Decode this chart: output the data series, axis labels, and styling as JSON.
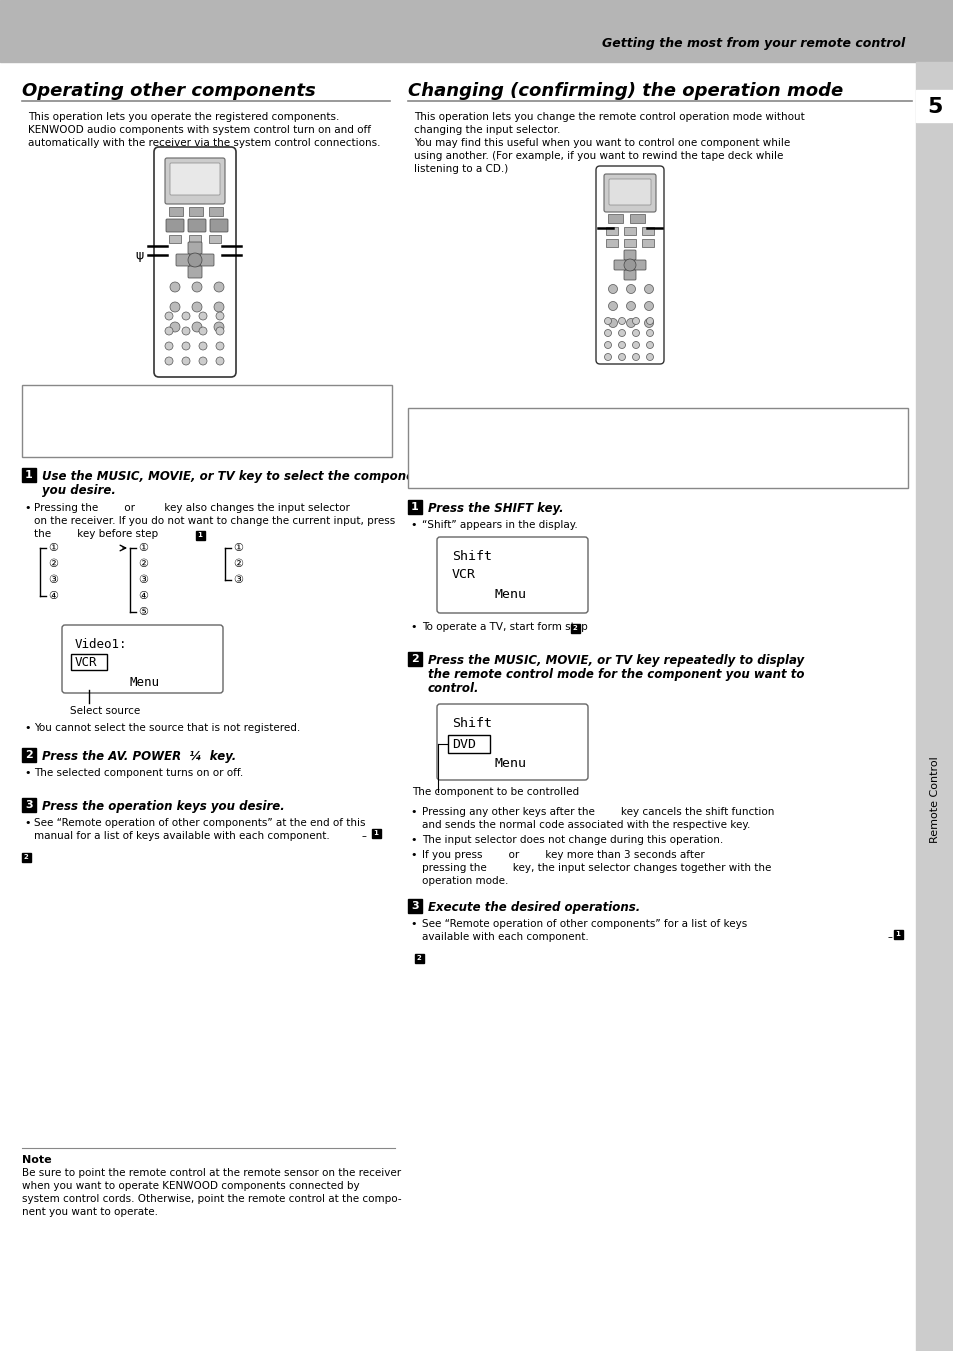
{
  "header_bg": "#b5b5b5",
  "header_text": "Getting the most from your remote control",
  "page_bg": "#ffffff",
  "left_title": "Operating other components",
  "right_title": "Changing (confirming) the operation mode",
  "page_number": "5",
  "sidebar_color": "#cccccc",
  "left_intro1": "This operation lets you operate the registered components.",
  "left_intro2": "KENWOOD audio components with system control turn on and off",
  "left_intro3": "automatically with the receiver via the system control connections.",
  "right_intro1": "This operation lets you change the remote control operation mode without",
  "right_intro2": "changing the input selector.",
  "right_intro3": "You may find this useful when you want to control one component while",
  "right_intro4": "using another. (For example, if you want to rewind the tape deck while",
  "right_intro5": "listening to a CD.)",
  "step1L_text1": "Use the MUSIC, MOVIE, or TV key to select the component",
  "step1L_text2": "you desire.",
  "step1L_b1_1": "Pressing the        or         key also changes the input selector",
  "step1L_b1_2": "on the receiver. If you do not want to change the current input, press",
  "step1L_b1_3": "the        key before step",
  "select_source": "Select source",
  "step1L_b2": "You cannot select the source that is not registered.",
  "step2L_text": "Press the AV. POWER  ¼  key.",
  "step2L_b1": "The selected component turns on or off.",
  "step3L_text": "Press the operation keys you desire.",
  "step3L_b1_1": "See “Remote operation of other components” at the end of this",
  "step3L_b1_2": "manual for a list of keys available with each component.",
  "note_title": "Note",
  "note_1": "Be sure to point the remote control at the remote sensor on the receiver",
  "note_2": "when you want to operate KENWOOD components connected by",
  "note_3": "system control cords. Otherwise, point the remote control at the compo-",
  "note_4": "nent you want to operate.",
  "step1R_text": "Press the SHIFT key.",
  "step1R_b1": "“Shift” appears in the display.",
  "disp1_l1": "Shift",
  "disp1_l2": "VCR",
  "disp1_l3": "Menu",
  "step1R_b2": "To operate a TV, start form step",
  "step2R_text1": "Press the MUSIC, MOVIE, or TV key repeatedly to display",
  "step2R_text2": "the remote control mode for the component you want to",
  "step2R_text3": "control.",
  "disp2_l1": "Shift",
  "disp2_l2": "DVD",
  "disp2_l3": "Menu",
  "disp2_caption": "The component to be controlled",
  "step2R_b1_1": "Pressing any other keys after the        key cancels the shift function",
  "step2R_b1_2": "and sends the normal code associated with the respective key.",
  "step2R_b2": "The input selector does not change during this operation.",
  "step2R_b3_1": "If you press        or        key more than 3 seconds after",
  "step2R_b3_2": "pressing the        key, the input selector changes together with the",
  "step2R_b3_3": "operation mode.",
  "step3R_text": "Execute the desired operations.",
  "step3R_b1_1": "See “Remote operation of other components” for a list of keys",
  "step3R_b1_2": "available with each component.",
  "sidebar_text": "Remote Control"
}
